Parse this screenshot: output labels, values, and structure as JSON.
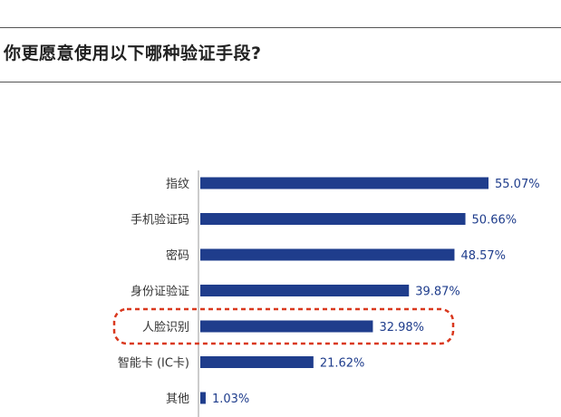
{
  "title": "你更愿意使用以下哪种验证手段?",
  "colors": {
    "bar": "#1f3d8c",
    "highlight": "#d9381e",
    "axis": "#999999"
  },
  "chart_data": {
    "type": "bar",
    "orientation": "horizontal",
    "categories": [
      "指纹",
      "手机验证码",
      "密码",
      "身份证验证",
      "人脸识别",
      "智能卡 (IC卡)",
      "其他"
    ],
    "values": [
      55.07,
      50.66,
      48.57,
      39.87,
      32.98,
      21.62,
      1.03
    ],
    "value_labels": [
      "55.07%",
      "50.66%",
      "48.57%",
      "39.87%",
      "32.98%",
      "21.62%",
      "1.03%"
    ],
    "highlighted_category": "人脸识别",
    "xlim": [
      0,
      55.07
    ],
    "grid": false
  }
}
